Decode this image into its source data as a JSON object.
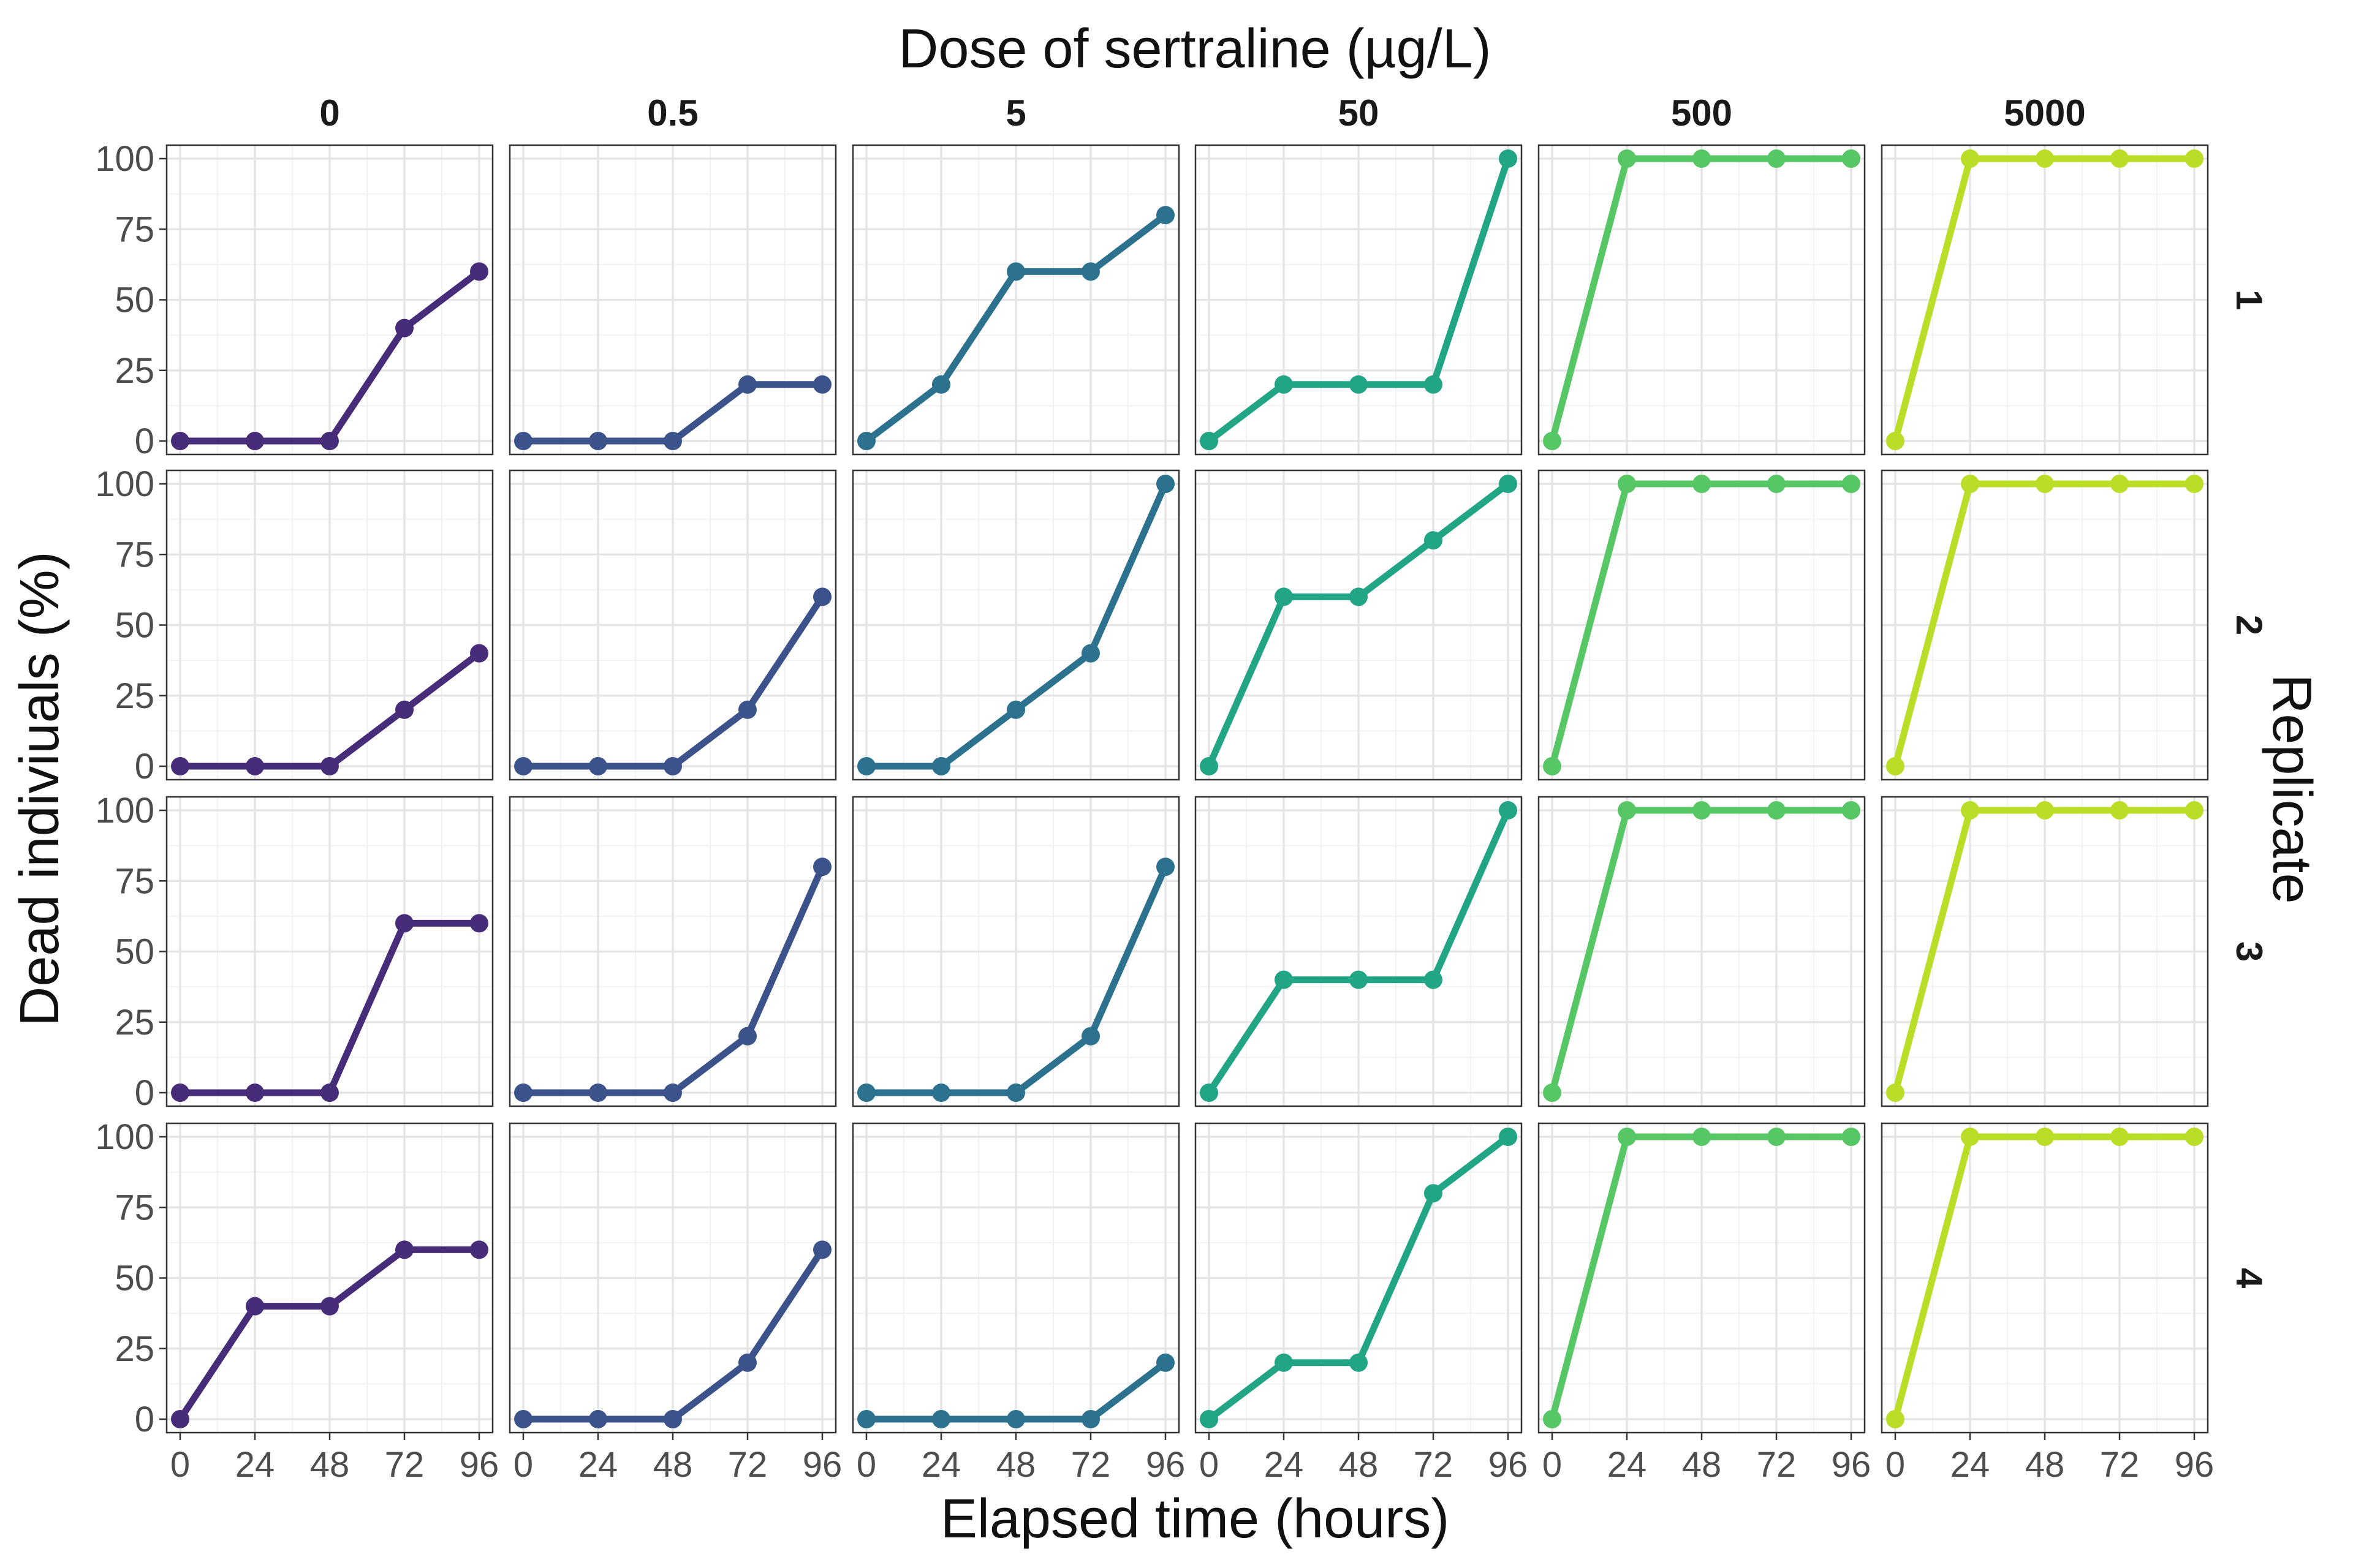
{
  "chart_data": {
    "type": "line",
    "top_title": "Dose of sertraline (µg/L)",
    "xlabel": "Elapsed time (hours)",
    "ylabel": "Dead indiviuals (%)",
    "right_title": "Replicate",
    "x": [
      0,
      24,
      48,
      72,
      96
    ],
    "x_ticks": [
      0,
      24,
      48,
      72,
      96
    ],
    "y_ticks": [
      0,
      25,
      50,
      75,
      100
    ],
    "xlim": [
      0,
      96
    ],
    "ylim": [
      0,
      100
    ],
    "grid": true,
    "doses": [
      "0",
      "0.5",
      "5",
      "50",
      "500",
      "5000"
    ],
    "replicates": [
      "1",
      "2",
      "3",
      "4"
    ],
    "colors": [
      "#472c7a",
      "#3b528b",
      "#2c728e",
      "#21a585",
      "#57c766",
      "#bade28"
    ],
    "series": [
      {
        "dose": "0",
        "replicate": "1",
        "values": [
          0,
          0,
          0,
          40,
          60
        ]
      },
      {
        "dose": "0.5",
        "replicate": "1",
        "values": [
          0,
          0,
          0,
          20,
          20
        ]
      },
      {
        "dose": "5",
        "replicate": "1",
        "values": [
          0,
          20,
          60,
          60,
          80
        ]
      },
      {
        "dose": "50",
        "replicate": "1",
        "values": [
          0,
          20,
          20,
          20,
          100
        ]
      },
      {
        "dose": "500",
        "replicate": "1",
        "values": [
          0,
          100,
          100,
          100,
          100
        ]
      },
      {
        "dose": "5000",
        "replicate": "1",
        "values": [
          0,
          100,
          100,
          100,
          100
        ]
      },
      {
        "dose": "0",
        "replicate": "2",
        "values": [
          0,
          0,
          0,
          20,
          40
        ]
      },
      {
        "dose": "0.5",
        "replicate": "2",
        "values": [
          0,
          0,
          0,
          20,
          60
        ]
      },
      {
        "dose": "5",
        "replicate": "2",
        "values": [
          0,
          0,
          20,
          40,
          100
        ]
      },
      {
        "dose": "50",
        "replicate": "2",
        "values": [
          0,
          60,
          60,
          80,
          100
        ]
      },
      {
        "dose": "500",
        "replicate": "2",
        "values": [
          0,
          100,
          100,
          100,
          100
        ]
      },
      {
        "dose": "5000",
        "replicate": "2",
        "values": [
          0,
          100,
          100,
          100,
          100
        ]
      },
      {
        "dose": "0",
        "replicate": "3",
        "values": [
          0,
          0,
          0,
          60,
          60
        ]
      },
      {
        "dose": "0.5",
        "replicate": "3",
        "values": [
          0,
          0,
          0,
          20,
          80
        ]
      },
      {
        "dose": "5",
        "replicate": "3",
        "values": [
          0,
          0,
          0,
          20,
          80
        ]
      },
      {
        "dose": "50",
        "replicate": "3",
        "values": [
          0,
          40,
          40,
          40,
          100
        ]
      },
      {
        "dose": "500",
        "replicate": "3",
        "values": [
          0,
          100,
          100,
          100,
          100
        ]
      },
      {
        "dose": "5000",
        "replicate": "3",
        "values": [
          0,
          100,
          100,
          100,
          100
        ]
      },
      {
        "dose": "0",
        "replicate": "4",
        "values": [
          0,
          40,
          40,
          60,
          60
        ]
      },
      {
        "dose": "0.5",
        "replicate": "4",
        "values": [
          0,
          0,
          0,
          20,
          60
        ]
      },
      {
        "dose": "5",
        "replicate": "4",
        "values": [
          0,
          0,
          0,
          0,
          20
        ]
      },
      {
        "dose": "50",
        "replicate": "4",
        "values": [
          0,
          20,
          20,
          80,
          100
        ]
      },
      {
        "dose": "500",
        "replicate": "4",
        "values": [
          0,
          100,
          100,
          100,
          100
        ]
      },
      {
        "dose": "5000",
        "replicate": "4",
        "values": [
          0,
          100,
          100,
          100,
          100
        ]
      }
    ]
  }
}
